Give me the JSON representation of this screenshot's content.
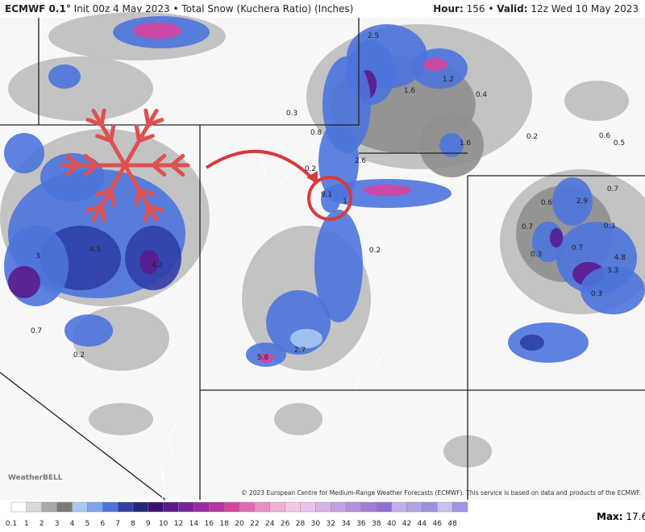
{
  "header": {
    "model": "ECMWF 0.1°",
    "init": "Init 00z 4 May 2023",
    "separator": "•",
    "product": "Total Snow (Kuchera Ratio) (Inches)",
    "hour_label": "Hour:",
    "hour": 156,
    "valid_label": "Valid:",
    "valid": "12z Wed 10 May 2023"
  },
  "map_labels": [
    2.5,
    1.2,
    1.6,
    0.4,
    0.3,
    0.8,
    1.6,
    0.2,
    0.6,
    0.5,
    2.6,
    0.2,
    9.1,
    1,
    0.7,
    0.6,
    2.9,
    0.7,
    0.3,
    0.2,
    0.7,
    0.3,
    4.8,
    3.3,
    4.5,
    4.2,
    3,
    0.3,
    0.7,
    0.2,
    5.8,
    2.7
  ],
  "logo": "WeatherBELL",
  "credit": "© 2023 European Centre for Medium-Range Weather Forecasts (ECMWF). This service is based on data and products of the ECMWF.",
  "legend": {
    "labels": [
      0.1,
      1,
      2,
      3,
      4,
      5,
      6,
      7,
      8,
      9,
      10,
      12,
      14,
      16,
      18,
      20,
      22,
      24,
      26,
      28,
      30,
      32,
      34,
      36,
      38,
      40,
      42,
      44,
      46,
      48
    ],
    "max_label": "Max:",
    "max": 17.6
  }
}
